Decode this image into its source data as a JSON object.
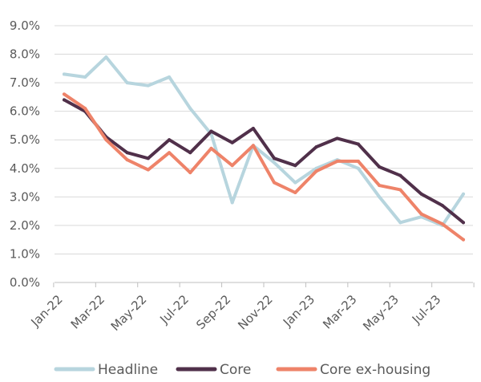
{
  "chart_data": {
    "type": "line",
    "title": "",
    "xlabel": "",
    "ylabel": "",
    "ylim": [
      0,
      9
    ],
    "y_ticks": [
      "0.0%",
      "1.0%",
      "2.0%",
      "3.0%",
      "4.0%",
      "5.0%",
      "6.0%",
      "7.0%",
      "8.0%",
      "9.0%"
    ],
    "x": [
      "Jan-22",
      "Feb-22",
      "Mar-22",
      "Apr-22",
      "May-22",
      "Jun-22",
      "Jul-22",
      "Aug-22",
      "Sep-22",
      "Oct-22",
      "Nov-22",
      "Dec-22",
      "Jan-23",
      "Feb-23",
      "Mar-23",
      "Apr-23",
      "May-23",
      "Jun-23",
      "Jul-23",
      "Aug-23"
    ],
    "x_tick_labels": [
      "Jan-22",
      "Mar-22",
      "May-22",
      "Jul-22",
      "Sep-22",
      "Nov-22",
      "Jan-23",
      "Mar-23",
      "May-23",
      "Jul-23"
    ],
    "grid": true,
    "legend_position": "bottom",
    "series": [
      {
        "name": "Headline",
        "color": "#b7d5de",
        "values": [
          7.3,
          7.2,
          7.9,
          7.0,
          6.9,
          7.2,
          6.1,
          5.2,
          2.8,
          4.8,
          4.2,
          3.5,
          4.0,
          4.3,
          4.0,
          3.0,
          2.1,
          2.3,
          2.0,
          3.1
        ]
      },
      {
        "name": "Core",
        "color": "#50304a",
        "values": [
          6.4,
          6.0,
          5.1,
          4.55,
          4.35,
          5.0,
          4.55,
          5.3,
          4.9,
          5.4,
          4.35,
          4.1,
          4.75,
          5.05,
          4.85,
          4.05,
          3.75,
          3.1,
          2.7,
          2.1
        ]
      },
      {
        "name": "Core ex-housing",
        "color": "#ee8369",
        "values": [
          6.6,
          6.1,
          5.0,
          4.3,
          3.95,
          4.55,
          3.85,
          4.7,
          4.1,
          4.8,
          3.5,
          3.15,
          3.9,
          4.25,
          4.25,
          3.4,
          3.25,
          2.4,
          2.05,
          1.5
        ]
      }
    ]
  }
}
